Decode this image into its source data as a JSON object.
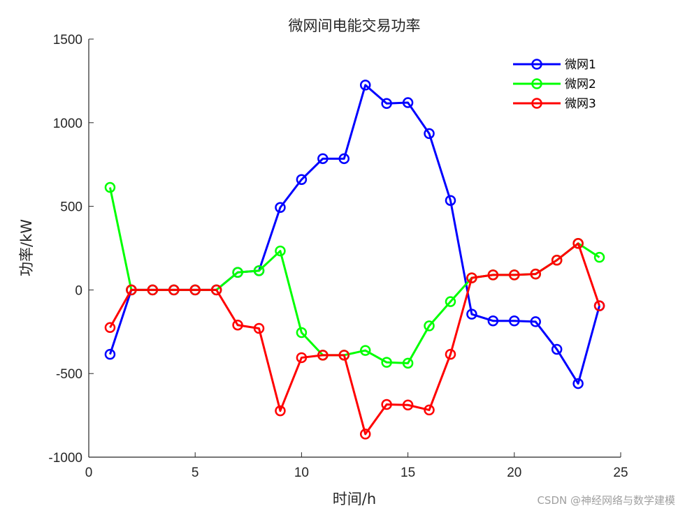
{
  "chart_data": {
    "type": "line",
    "title": "微网间电能交易功率",
    "xlabel": "时间/h",
    "ylabel": "功率/kW",
    "xlim": [
      0,
      25
    ],
    "ylim": [
      -1000,
      1500
    ],
    "xticks": [
      0,
      5,
      10,
      15,
      20,
      25
    ],
    "yticks": [
      -1000,
      -500,
      0,
      500,
      1000,
      1500
    ],
    "grid": false,
    "legend_position": "top-right",
    "x": [
      1,
      2,
      3,
      4,
      5,
      6,
      7,
      8,
      9,
      10,
      11,
      12,
      13,
      14,
      15,
      16,
      17,
      18,
      19,
      20,
      21,
      22,
      23,
      24
    ],
    "series": [
      {
        "name": "微网1",
        "color": "#0000ff",
        "values": [
          -385,
          0,
          0,
          0,
          0,
          0,
          105,
          115,
          493,
          660,
          785,
          785,
          1225,
          1115,
          1120,
          935,
          535,
          -145,
          -185,
          -185,
          -190,
          -355,
          -560,
          -95
        ]
      },
      {
        "name": "微网2",
        "color": "#00ff00",
        "values": [
          613,
          0,
          0,
          0,
          0,
          0,
          105,
          115,
          233,
          -255,
          -390,
          -390,
          -362,
          -433,
          -438,
          -215,
          -70,
          72,
          90,
          90,
          95,
          178,
          278,
          195
        ]
      },
      {
        "name": "微网3",
        "color": "#ff0000",
        "values": [
          -225,
          0,
          0,
          0,
          0,
          0,
          -210,
          -230,
          -723,
          -405,
          -390,
          -390,
          -862,
          -685,
          -688,
          -718,
          -385,
          72,
          90,
          90,
          95,
          178,
          278,
          -95
        ]
      }
    ]
  },
  "watermark": "CSDN @神经网络与数学建模"
}
